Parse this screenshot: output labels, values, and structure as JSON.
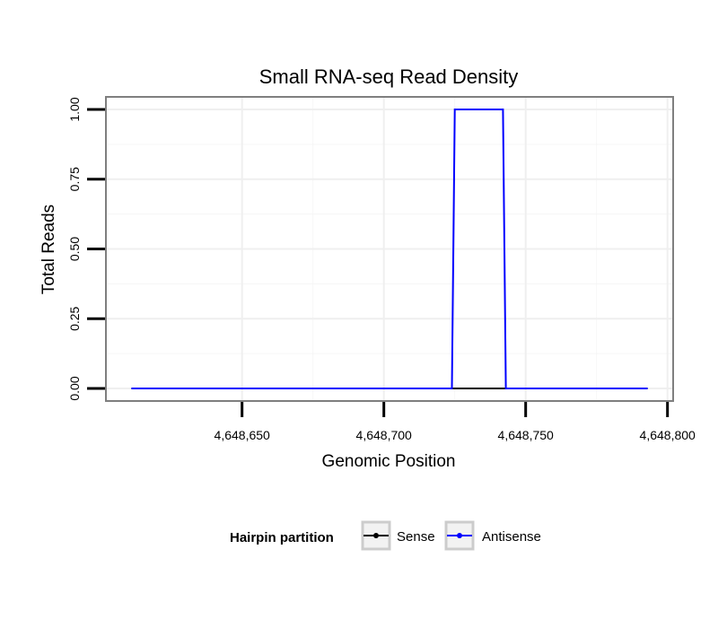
{
  "chart_data": {
    "type": "line",
    "title": "Small RNA-seq Read Density",
    "xlabel": "Genomic Position",
    "ylabel": "Total Reads",
    "xlim": [
      4648602,
      4648802
    ],
    "ylim": [
      -0.045,
      1.045
    ],
    "x_ticks": [
      4648650,
      4648700,
      4648750,
      4648800
    ],
    "x_tick_labels": [
      "4,648,650",
      "4,648,700",
      "4,648,750",
      "4,648,800"
    ],
    "y_ticks": [
      0,
      0.25,
      0.5,
      0.75,
      1.0
    ],
    "y_tick_labels": [
      "0.00",
      "0.25",
      "0.50",
      "0.75",
      "1.00"
    ],
    "grid": true,
    "legend": {
      "title": "Hairpin partition",
      "position": "bottom",
      "entries": [
        {
          "name": "Sense",
          "color": "#000000"
        },
        {
          "name": "Antisense",
          "color": "#0000ff"
        }
      ]
    },
    "series": [
      {
        "name": "Sense",
        "color": "#000000",
        "x": [
          4648611,
          4648793
        ],
        "y": [
          0,
          0
        ]
      },
      {
        "name": "Antisense",
        "color": "#0000ff",
        "x": [
          4648611,
          4648724,
          4648725,
          4648742,
          4648743,
          4648793
        ],
        "y": [
          0,
          0,
          1,
          1,
          0,
          0
        ]
      }
    ]
  }
}
